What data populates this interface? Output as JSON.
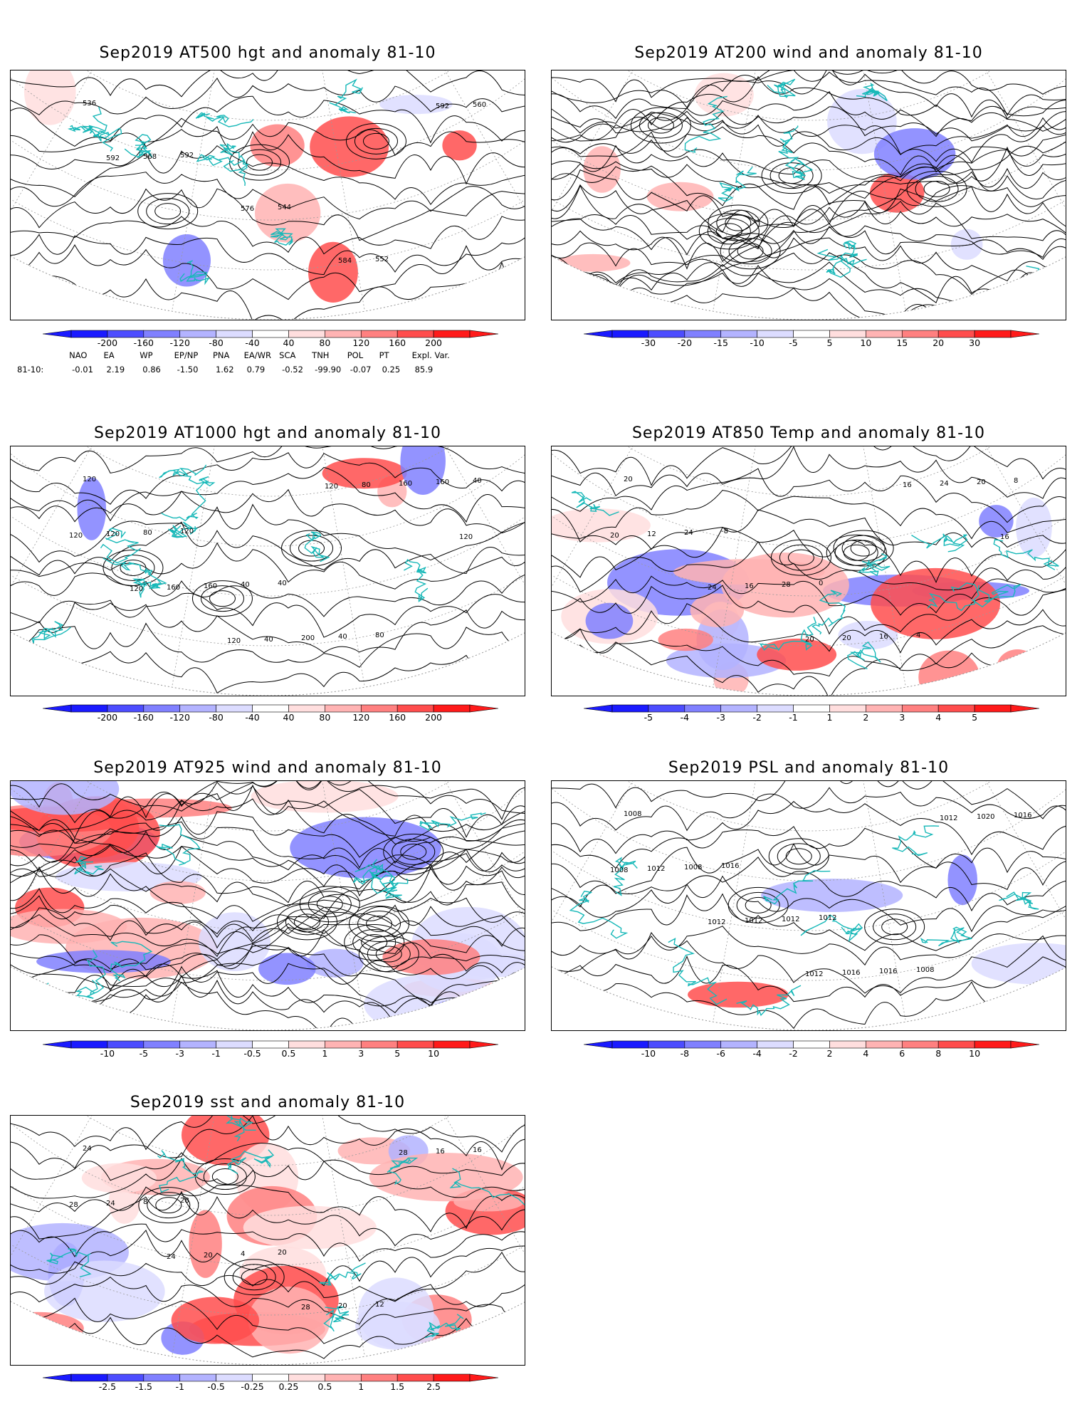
{
  "panels": [
    {
      "id": "p1",
      "title": "Sep2019 AT500 hgt and anomaly 81-10",
      "colorbar_labels": [
        "-200",
        "-160",
        "-120",
        "-80",
        "-40",
        "40",
        "80",
        "120",
        "160",
        "200"
      ],
      "contour_labels": [
        "536",
        "592",
        "544",
        "552",
        "560",
        "568",
        "576",
        "584",
        "592",
        "592"
      ]
    },
    {
      "id": "p2",
      "title": "Sep2019 AT200 wind and anomaly 81-10",
      "colorbar_labels": [
        "-30",
        "-20",
        "-15",
        "-10",
        "-5",
        "5",
        "10",
        "15",
        "20",
        "30"
      ],
      "contour_labels": []
    },
    {
      "id": "p3",
      "title": "Sep2019 AT1000 hgt and anomaly 81-10",
      "colorbar_labels": [
        "-200",
        "-160",
        "-120",
        "-80",
        "-40",
        "40",
        "80",
        "120",
        "160",
        "200"
      ],
      "contour_labels": [
        "120",
        "120",
        "40",
        "80",
        "40",
        "80",
        "40",
        "40",
        "160",
        "120",
        "160",
        "200",
        "160",
        "120",
        "160",
        "40",
        "80",
        "120",
        "120",
        "120",
        "120"
      ]
    },
    {
      "id": "p4",
      "title": "Sep2019 AT850 Temp and anomaly 81-10",
      "colorbar_labels": [
        "-5",
        "-4",
        "-3",
        "-2",
        "-1",
        "1",
        "2",
        "3",
        "4",
        "5"
      ],
      "contour_labels": [
        "20",
        "-8",
        "0",
        "4",
        "8",
        "24",
        "28",
        "16",
        "20",
        "12",
        "16",
        "20",
        "24",
        "20",
        "24",
        "20",
        "16",
        "16"
      ]
    },
    {
      "id": "p5",
      "title": "Sep2019 AT925 wind and anomaly 81-10",
      "colorbar_labels": [
        "-10",
        "-5",
        "-3",
        "-1",
        "-0.5",
        "0.5",
        "1",
        "3",
        "5",
        "10"
      ],
      "contour_labels": []
    },
    {
      "id": "p6",
      "title": "Sep2019 PSL and anomaly 81-10",
      "colorbar_labels": [
        "-10",
        "-8",
        "-6",
        "-4",
        "-2",
        "2",
        "4",
        "6",
        "8",
        "10"
      ],
      "contour_labels": [
        "1008",
        "1016",
        "1012",
        "1008",
        "1016",
        "1008",
        "1012",
        "1016",
        "1020",
        "1012",
        "1012",
        "1016",
        "1012",
        "1008",
        "1012",
        "1012"
      ]
    },
    {
      "id": "p7",
      "title": "Sep2019 sst and anomaly 81-10",
      "colorbar_labels": [
        "-2.5",
        "-1.5",
        "-1",
        "-0.5",
        "-0.25",
        "0.25",
        "0.5",
        "1",
        "1.5",
        "2.5"
      ],
      "contour_labels": [
        "24",
        "28",
        "20",
        "12",
        "16",
        "8",
        "4",
        "20",
        "16",
        "24",
        "20",
        "28",
        "28",
        "28",
        "24"
      ]
    }
  ],
  "indices": {
    "row_label": "81-10:",
    "names": [
      "NAO",
      "EA",
      "WP",
      "EP/NP",
      "PNA",
      "EA/WR",
      "SCA",
      "TNH",
      "POL",
      "PT",
      "Expl. Var."
    ],
    "values": [
      "-0.01",
      "2.19",
      "0.86",
      "-1.50",
      "1.62",
      "0.79",
      "-0.52",
      "-99.90",
      "-0.07",
      "0.25",
      "85.9"
    ]
  },
  "colors": {
    "coast": "#17b8b8",
    "contour": "#000000",
    "grid": "#9a9a9a",
    "scale": [
      "#1a1aff",
      "#4d4dff",
      "#8080ff",
      "#b3b3ff",
      "#dcdcff",
      "#ffffff",
      "#ffdede",
      "#ffb3b3",
      "#ff8080",
      "#ff4d4d",
      "#ff1a1a"
    ]
  }
}
